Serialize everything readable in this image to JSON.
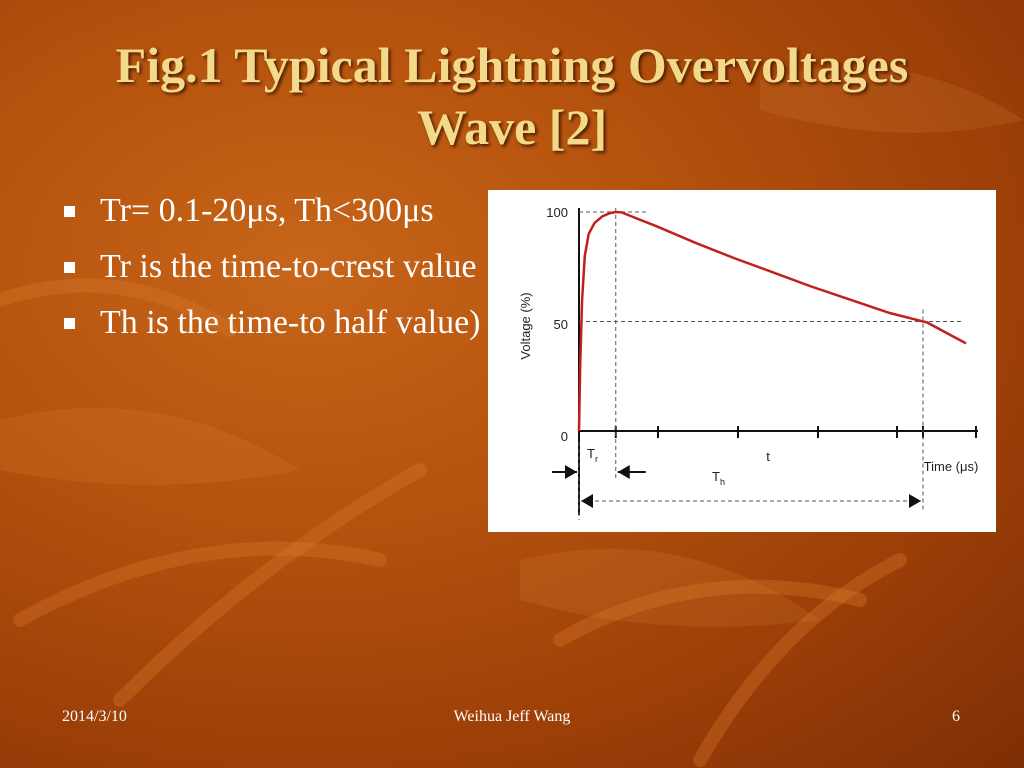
{
  "slide": {
    "title": "Fig.1 Typical Lightning Overvoltages Wave [2]",
    "bullets": [
      "Tr= 0.1-20μs, Th<300μs",
      "Tr is the time-to-crest value",
      "Th is the time-to half value)"
    ],
    "footer": {
      "date": "2014/3/10",
      "author": "Weihua Jeff Wang",
      "page": "6"
    }
  },
  "colors": {
    "curve": "#c02020",
    "title": "#f3d98a",
    "background": "#b5530e"
  },
  "chart_data": {
    "type": "line",
    "title": "",
    "xlabel": "Time (μs)",
    "ylabel": "Voltage (%)",
    "ylim": [
      0,
      100
    ],
    "xlim": [
      0,
      100
    ],
    "y_ticks": [
      "0",
      "50",
      "100"
    ],
    "grid": false,
    "annotations": {
      "tr_label": "T",
      "tr_sub": "r",
      "th_label": "T",
      "th_sub": "h",
      "t_label": "t"
    },
    "series": [
      {
        "x": [
          0,
          0.3,
          0.8,
          1.5,
          2.5,
          4,
          6,
          8,
          9.5,
          11,
          15,
          20,
          30,
          40,
          50,
          60,
          70,
          80,
          90,
          100
        ],
        "values": [
          0,
          30,
          60,
          80,
          90,
          95,
          98,
          99.5,
          100,
          99.8,
          97,
          93.5,
          86,
          79,
          72.5,
          66,
          60,
          54,
          49.5,
          40
        ]
      }
    ]
  }
}
